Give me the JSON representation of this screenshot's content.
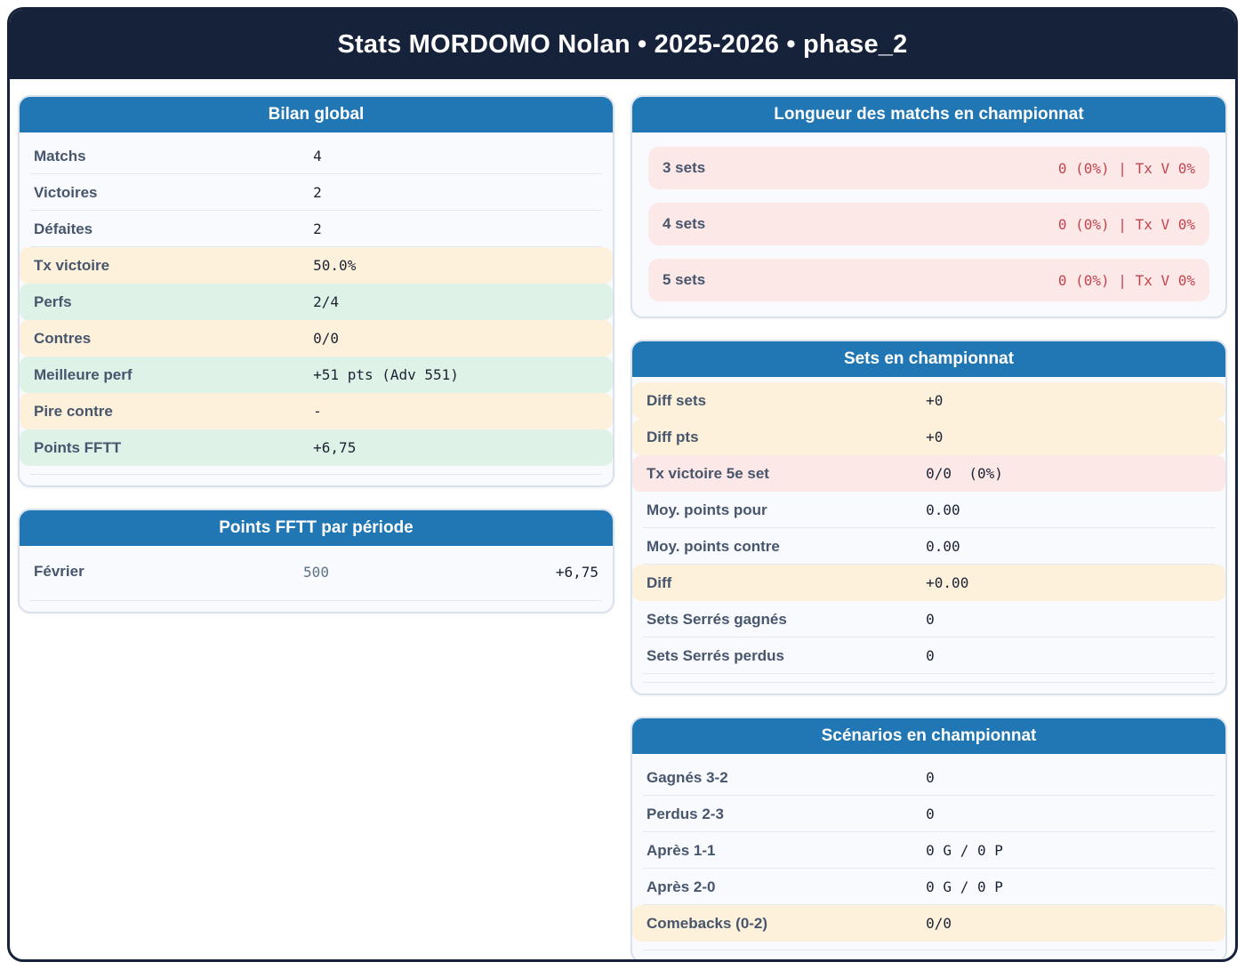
{
  "header": {
    "title": "Stats MORDOMO Nolan • 2025-2026 • phase_2"
  },
  "colors": {
    "dark_navy": "#16213a",
    "accent_blue": "#2177b4",
    "highlight_orange": "#fdf1dc",
    "highlight_green": "#dff2e7",
    "highlight_pink": "#fde8e8",
    "value_red": "#c2444e"
  },
  "bilan": {
    "title": "Bilan global",
    "rows": [
      {
        "label": "Matchs",
        "value": "4",
        "variant": "plain"
      },
      {
        "label": "Victoires",
        "value": "2",
        "variant": "plain"
      },
      {
        "label": "Défaites",
        "value": "2",
        "variant": "plain"
      },
      {
        "label": "Tx victoire",
        "value": "50.0%",
        "variant": "orange"
      },
      {
        "label": "Perfs",
        "value": "2/4",
        "variant": "green"
      },
      {
        "label": "Contres",
        "value": "0/0",
        "variant": "orange"
      },
      {
        "label": "Meilleure perf",
        "value": "+51 pts (Adv 551)",
        "variant": "green"
      },
      {
        "label": "Pire contre",
        "value": "-",
        "variant": "orange"
      },
      {
        "label": "Points FFTT",
        "value": "+6,75",
        "variant": "green"
      }
    ]
  },
  "points_periode": {
    "title": "Points FFTT par période",
    "rows": [
      {
        "label": "Février",
        "mid": "500",
        "value": "+6,75"
      }
    ]
  },
  "longueur": {
    "title": "Longueur des matchs en championnat",
    "rows": [
      {
        "label": "3 sets",
        "value": "0 (0%) | Tx V 0%"
      },
      {
        "label": "4 sets",
        "value": "0 (0%) | Tx V 0%"
      },
      {
        "label": "5 sets",
        "value": "0 (0%) | Tx V 0%"
      }
    ]
  },
  "sets": {
    "title": "Sets en championnat",
    "rows": [
      {
        "label": "Diff sets",
        "value": "+0",
        "variant": "orange"
      },
      {
        "label": "Diff pts",
        "value": "+0",
        "variant": "orange"
      },
      {
        "label": "Tx victoire 5e set",
        "value": "0/0  (0%)",
        "variant": "pink"
      },
      {
        "label": "Moy. points pour",
        "value": "0.00",
        "variant": "plain"
      },
      {
        "label": "Moy. points contre",
        "value": "0.00",
        "variant": "plain"
      },
      {
        "label": "Diff",
        "value": "+0.00",
        "variant": "orange"
      },
      {
        "label": "Sets Serrés gagnés",
        "value": "0",
        "variant": "plain"
      },
      {
        "label": "Sets Serrés perdus",
        "value": "0",
        "variant": "plain"
      }
    ]
  },
  "scenarios": {
    "title": "Scénarios en championnat",
    "rows": [
      {
        "label": "Gagnés 3-2",
        "value": "0",
        "variant": "plain"
      },
      {
        "label": "Perdus 2-3",
        "value": "0",
        "variant": "plain"
      },
      {
        "label": "Après 1-1",
        "value": "0 G / 0 P",
        "variant": "plain"
      },
      {
        "label": "Après 2-0",
        "value": "0 G / 0 P",
        "variant": "plain"
      },
      {
        "label": "Comebacks (0-2)",
        "value": "0/0",
        "variant": "orange"
      }
    ]
  }
}
